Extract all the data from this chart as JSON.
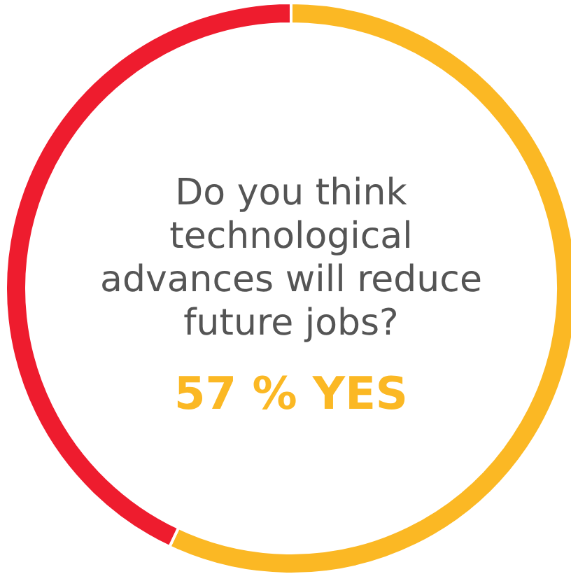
{
  "chart_data": {
    "type": "donut",
    "title": "Do you think technological advances will reduce future jobs?",
    "categories": [
      null,
      null
    ],
    "values": [
      57,
      43
    ],
    "colors": [
      "#fbb824",
      "#ee1c2e"
    ],
    "annotations": [
      "57 % YES"
    ]
  }
}
